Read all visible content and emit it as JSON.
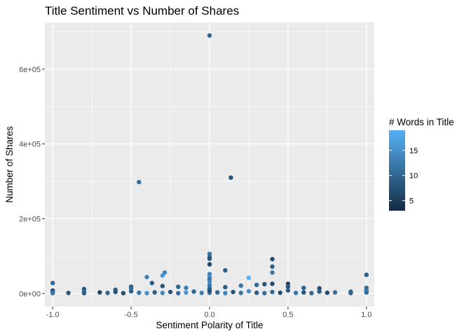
{
  "chart_data": {
    "type": "scatter",
    "title": "Title Sentiment vs Number of Shares",
    "xlabel": "Sentiment Polarity of Title",
    "ylabel": "Number of Shares",
    "xlim": [
      -1.05,
      1.05
    ],
    "ylim": [
      -35000,
      725000
    ],
    "x_ticks": [
      -1.0,
      -0.5,
      0.0,
      0.5,
      1.0
    ],
    "x_tick_labels": [
      "-1.0",
      "-0.5",
      "0.0",
      "0.5",
      "1.0"
    ],
    "y_ticks": [
      0,
      200000,
      400000,
      600000
    ],
    "y_tick_labels": [
      "0e+00",
      "2e+05",
      "4e+05",
      "6e+05"
    ],
    "grid": true,
    "legend": {
      "title": "# Words in Title",
      "placement": "right",
      "type": "colorbar",
      "range": [
        3,
        19
      ],
      "ticks": [
        5,
        10,
        15
      ],
      "tick_labels": [
        "5",
        "10",
        "15"
      ],
      "color_low": "#132b43",
      "color_high": "#56b1f7"
    },
    "points": [
      {
        "x": 0.0,
        "y": 690000,
        "c": 10
      },
      {
        "x": 0.136,
        "y": 310000,
        "c": 8
      },
      {
        "x": -0.45,
        "y": 298000,
        "c": 11
      },
      {
        "x": 0.0,
        "y": 106000,
        "c": 12
      },
      {
        "x": 0.0,
        "y": 98000,
        "c": 10
      },
      {
        "x": 0.0,
        "y": 93000,
        "c": 8
      },
      {
        "x": 0.0,
        "y": 78000,
        "c": 6
      },
      {
        "x": 0.4,
        "y": 92000,
        "c": 7
      },
      {
        "x": 0.4,
        "y": 72000,
        "c": 9
      },
      {
        "x": 0.4,
        "y": 56000,
        "c": 12
      },
      {
        "x": 0.1,
        "y": 62000,
        "c": 9
      },
      {
        "x": -0.286,
        "y": 56000,
        "c": 14
      },
      {
        "x": -0.3,
        "y": 48000,
        "c": 16
      },
      {
        "x": -0.4,
        "y": 44000,
        "c": 13
      },
      {
        "x": 0.0,
        "y": 52000,
        "c": 13
      },
      {
        "x": 0.0,
        "y": 45000,
        "c": 15
      },
      {
        "x": 0.0,
        "y": 38000,
        "c": 11
      },
      {
        "x": 0.0,
        "y": 32000,
        "c": 14
      },
      {
        "x": 1.0,
        "y": 50000,
        "c": 9
      },
      {
        "x": 0.25,
        "y": 42000,
        "c": 19
      },
      {
        "x": -1.0,
        "y": 28000,
        "c": 10
      },
      {
        "x": 0.35,
        "y": 25000,
        "c": 8
      },
      {
        "x": 0.4,
        "y": 26000,
        "c": 7
      },
      {
        "x": 0.5,
        "y": 26000,
        "c": 6
      },
      {
        "x": -0.367,
        "y": 28000,
        "c": 9
      },
      {
        "x": 0.3,
        "y": 23000,
        "c": 10
      },
      {
        "x": 0.2,
        "y": 21000,
        "c": 12
      },
      {
        "x": -0.5,
        "y": 18000,
        "c": 7
      },
      {
        "x": -0.5,
        "y": 14000,
        "c": 11
      },
      {
        "x": -0.3,
        "y": 20000,
        "c": 8
      },
      {
        "x": -0.2,
        "y": 18000,
        "c": 10
      },
      {
        "x": -0.15,
        "y": 15000,
        "c": 13
      },
      {
        "x": 0.1,
        "y": 17000,
        "c": 9
      },
      {
        "x": 0.5,
        "y": 18000,
        "c": 8
      },
      {
        "x": 0.6,
        "y": 15000,
        "c": 9
      },
      {
        "x": 0.7,
        "y": 14000,
        "c": 7
      },
      {
        "x": 1.0,
        "y": 15000,
        "c": 10
      },
      {
        "x": -0.8,
        "y": 12000,
        "c": 8
      },
      {
        "x": -0.6,
        "y": 10000,
        "c": 9
      },
      {
        "x": -1.0,
        "y": 8000,
        "c": 7
      },
      {
        "x": -1.0,
        "y": 4000,
        "c": 9
      },
      {
        "x": -1.0,
        "y": 1000,
        "c": 12
      },
      {
        "x": -0.9,
        "y": 1500,
        "c": 8
      },
      {
        "x": -0.8,
        "y": 5000,
        "c": 11
      },
      {
        "x": -0.8,
        "y": 1000,
        "c": 9
      },
      {
        "x": -0.7,
        "y": 3000,
        "c": 6
      },
      {
        "x": -0.65,
        "y": 1500,
        "c": 10
      },
      {
        "x": -0.6,
        "y": 4000,
        "c": 8
      },
      {
        "x": -0.55,
        "y": 1000,
        "c": 7
      },
      {
        "x": -0.5,
        "y": 6000,
        "c": 9
      },
      {
        "x": -0.45,
        "y": 2000,
        "c": 12
      },
      {
        "x": -0.4,
        "y": 1000,
        "c": 15
      },
      {
        "x": -0.35,
        "y": 3000,
        "c": 9
      },
      {
        "x": -0.3,
        "y": 1500,
        "c": 14
      },
      {
        "x": -0.25,
        "y": 4000,
        "c": 8
      },
      {
        "x": -0.2,
        "y": 1000,
        "c": 11
      },
      {
        "x": -0.15,
        "y": 2500,
        "c": 16
      },
      {
        "x": -0.1,
        "y": 5000,
        "c": 10
      },
      {
        "x": -0.05,
        "y": 1500,
        "c": 13
      },
      {
        "x": 0.0,
        "y": 2000,
        "c": 11
      },
      {
        "x": 0.0,
        "y": 8000,
        "c": 7
      },
      {
        "x": 0.0,
        "y": 14000,
        "c": 9
      },
      {
        "x": 0.0,
        "y": 22000,
        "c": 12
      },
      {
        "x": 0.05,
        "y": 3000,
        "c": 10
      },
      {
        "x": 0.1,
        "y": 1000,
        "c": 14
      },
      {
        "x": 0.15,
        "y": 4000,
        "c": 8
      },
      {
        "x": 0.2,
        "y": 1500,
        "c": 12
      },
      {
        "x": 0.25,
        "y": 6000,
        "c": 15
      },
      {
        "x": 0.3,
        "y": 2000,
        "c": 9
      },
      {
        "x": 0.35,
        "y": 1000,
        "c": 11
      },
      {
        "x": 0.4,
        "y": 4000,
        "c": 10
      },
      {
        "x": 0.45,
        "y": 2000,
        "c": 7
      },
      {
        "x": 0.5,
        "y": 8000,
        "c": 9
      },
      {
        "x": 0.55,
        "y": 1500,
        "c": 12
      },
      {
        "x": 0.6,
        "y": 3000,
        "c": 8
      },
      {
        "x": 0.65,
        "y": 1000,
        "c": 10
      },
      {
        "x": 0.7,
        "y": 5000,
        "c": 9
      },
      {
        "x": 0.75,
        "y": 2000,
        "c": 7
      },
      {
        "x": 0.8,
        "y": 3000,
        "c": 11
      },
      {
        "x": 0.9,
        "y": 1500,
        "c": 8
      },
      {
        "x": 0.9,
        "y": 5000,
        "c": 10
      },
      {
        "x": 1.0,
        "y": 3000,
        "c": 9
      },
      {
        "x": 1.0,
        "y": 8000,
        "c": 12
      }
    ]
  }
}
